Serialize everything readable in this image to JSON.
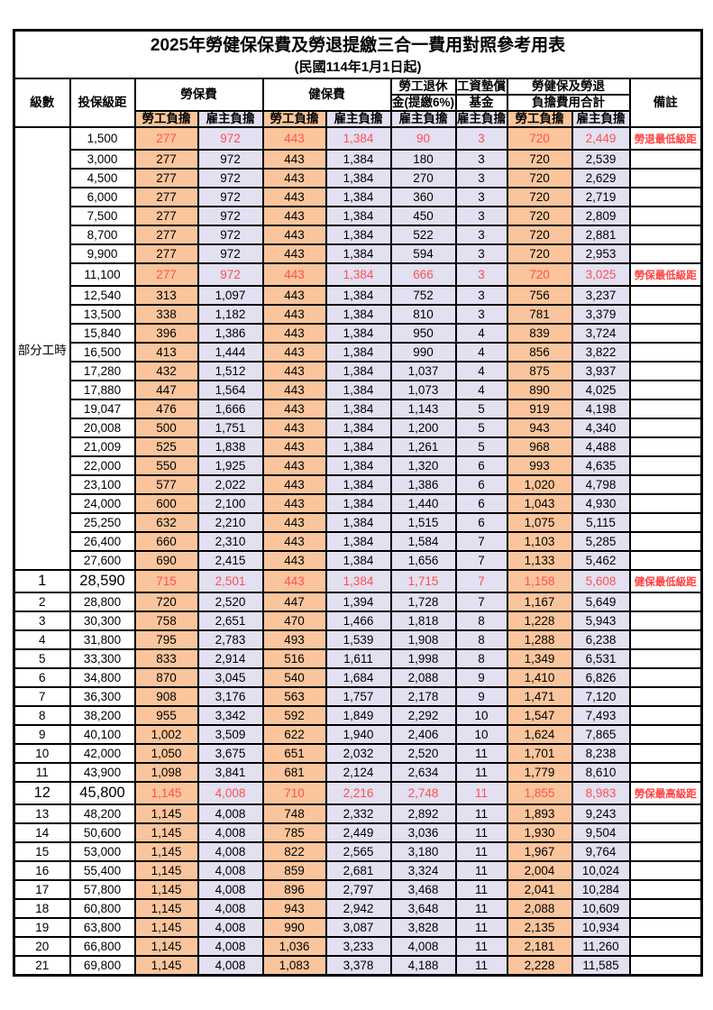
{
  "title": {
    "line1": "2025年勞健保保費及勞退提繳三合一費用對照參考用表",
    "line2": "(民國114年1月1日起)"
  },
  "header": {
    "level": "級數",
    "bracket": "投保級距",
    "labor_fee": "勞保費",
    "health_fee": "健保費",
    "pension_line1": "勞工退休",
    "pension_line2": "金(提繳6%)",
    "wage_fund_line1": "工資墊償",
    "wage_fund_line2": "基金",
    "total_line1": "勞健保及勞退",
    "total_line2": "負擔費用合計",
    "remark": "備註",
    "employee": "勞工負擔",
    "employer": "雇主負擔"
  },
  "colors": {
    "employee_bg": "#FAC59C",
    "employer_bg": "#E2E0F1",
    "highlight_value_red": "#FF5050",
    "remark_red": "#FF4040",
    "border": "#000000"
  },
  "table": {
    "partial_time_label": "部分工時",
    "rows": [
      {
        "level": null,
        "bracket": "1,500",
        "values": [
          "277",
          "972",
          "443",
          "1,384",
          "90",
          "3",
          "720",
          "2,449"
        ],
        "remark": "勞退最低級距",
        "highlight": true
      },
      {
        "level": null,
        "bracket": "3,000",
        "values": [
          "277",
          "972",
          "443",
          "1,384",
          "180",
          "3",
          "720",
          "2,539"
        ]
      },
      {
        "level": null,
        "bracket": "4,500",
        "values": [
          "277",
          "972",
          "443",
          "1,384",
          "270",
          "3",
          "720",
          "2,629"
        ]
      },
      {
        "level": null,
        "bracket": "6,000",
        "values": [
          "277",
          "972",
          "443",
          "1,384",
          "360",
          "3",
          "720",
          "2,719"
        ]
      },
      {
        "level": null,
        "bracket": "7,500",
        "values": [
          "277",
          "972",
          "443",
          "1,384",
          "450",
          "3",
          "720",
          "2,809"
        ]
      },
      {
        "level": null,
        "bracket": "8,700",
        "values": [
          "277",
          "972",
          "443",
          "1,384",
          "522",
          "3",
          "720",
          "2,881"
        ]
      },
      {
        "level": null,
        "bracket": "9,900",
        "values": [
          "277",
          "972",
          "443",
          "1,384",
          "594",
          "3",
          "720",
          "2,953"
        ]
      },
      {
        "level": null,
        "bracket": "11,100",
        "values": [
          "277",
          "972",
          "443",
          "1,384",
          "666",
          "3",
          "720",
          "3,025"
        ],
        "remark": "勞保最低級距",
        "highlight": true
      },
      {
        "level": null,
        "bracket": "12,540",
        "values": [
          "313",
          "1,097",
          "443",
          "1,384",
          "752",
          "3",
          "756",
          "3,237"
        ]
      },
      {
        "level": null,
        "bracket": "13,500",
        "values": [
          "338",
          "1,182",
          "443",
          "1,384",
          "810",
          "3",
          "781",
          "3,379"
        ]
      },
      {
        "level": null,
        "bracket": "15,840",
        "values": [
          "396",
          "1,386",
          "443",
          "1,384",
          "950",
          "4",
          "839",
          "3,724"
        ]
      },
      {
        "level": null,
        "bracket": "16,500",
        "values": [
          "413",
          "1,444",
          "443",
          "1,384",
          "990",
          "4",
          "856",
          "3,822"
        ]
      },
      {
        "level": null,
        "bracket": "17,280",
        "values": [
          "432",
          "1,512",
          "443",
          "1,384",
          "1,037",
          "4",
          "875",
          "3,937"
        ]
      },
      {
        "level": null,
        "bracket": "17,880",
        "values": [
          "447",
          "1,564",
          "443",
          "1,384",
          "1,073",
          "4",
          "890",
          "4,025"
        ]
      },
      {
        "level": null,
        "bracket": "19,047",
        "values": [
          "476",
          "1,666",
          "443",
          "1,384",
          "1,143",
          "5",
          "919",
          "4,198"
        ]
      },
      {
        "level": null,
        "bracket": "20,008",
        "values": [
          "500",
          "1,751",
          "443",
          "1,384",
          "1,200",
          "5",
          "943",
          "4,340"
        ]
      },
      {
        "level": null,
        "bracket": "21,009",
        "values": [
          "525",
          "1,838",
          "443",
          "1,384",
          "1,261",
          "5",
          "968",
          "4,488"
        ]
      },
      {
        "level": null,
        "bracket": "22,000",
        "values": [
          "550",
          "1,925",
          "443",
          "1,384",
          "1,320",
          "6",
          "993",
          "4,635"
        ]
      },
      {
        "level": null,
        "bracket": "23,100",
        "values": [
          "577",
          "2,022",
          "443",
          "1,384",
          "1,386",
          "6",
          "1,020",
          "4,798"
        ]
      },
      {
        "level": null,
        "bracket": "24,000",
        "values": [
          "600",
          "2,100",
          "443",
          "1,384",
          "1,440",
          "6",
          "1,043",
          "4,930"
        ]
      },
      {
        "level": null,
        "bracket": "25,250",
        "values": [
          "632",
          "2,210",
          "443",
          "1,384",
          "1,515",
          "6",
          "1,075",
          "5,115"
        ]
      },
      {
        "level": null,
        "bracket": "26,400",
        "values": [
          "660",
          "2,310",
          "443",
          "1,384",
          "1,584",
          "7",
          "1,103",
          "5,285"
        ]
      },
      {
        "level": null,
        "bracket": "27,600",
        "values": [
          "690",
          "2,415",
          "443",
          "1,384",
          "1,656",
          "7",
          "1,133",
          "5,462"
        ]
      },
      {
        "level": "1",
        "bracket": "28,590",
        "values": [
          "715",
          "2,501",
          "443",
          "1,384",
          "1,715",
          "7",
          "1,158",
          "5,608"
        ],
        "remark": "健保最低級距",
        "highlight": true,
        "big": true
      },
      {
        "level": "2",
        "bracket": "28,800",
        "values": [
          "720",
          "2,520",
          "447",
          "1,394",
          "1,728",
          "7",
          "1,167",
          "5,649"
        ]
      },
      {
        "level": "3",
        "bracket": "30,300",
        "values": [
          "758",
          "2,651",
          "470",
          "1,466",
          "1,818",
          "8",
          "1,228",
          "5,943"
        ]
      },
      {
        "level": "4",
        "bracket": "31,800",
        "values": [
          "795",
          "2,783",
          "493",
          "1,539",
          "1,908",
          "8",
          "1,288",
          "6,238"
        ]
      },
      {
        "level": "5",
        "bracket": "33,300",
        "values": [
          "833",
          "2,914",
          "516",
          "1,611",
          "1,998",
          "8",
          "1,349",
          "6,531"
        ]
      },
      {
        "level": "6",
        "bracket": "34,800",
        "values": [
          "870",
          "3,045",
          "540",
          "1,684",
          "2,088",
          "9",
          "1,410",
          "6,826"
        ]
      },
      {
        "level": "7",
        "bracket": "36,300",
        "values": [
          "908",
          "3,176",
          "563",
          "1,757",
          "2,178",
          "9",
          "1,471",
          "7,120"
        ]
      },
      {
        "level": "8",
        "bracket": "38,200",
        "values": [
          "955",
          "3,342",
          "592",
          "1,849",
          "2,292",
          "10",
          "1,547",
          "7,493"
        ]
      },
      {
        "level": "9",
        "bracket": "40,100",
        "values": [
          "1,002",
          "3,509",
          "622",
          "1,940",
          "2,406",
          "10",
          "1,624",
          "7,865"
        ]
      },
      {
        "level": "10",
        "bracket": "42,000",
        "values": [
          "1,050",
          "3,675",
          "651",
          "2,032",
          "2,520",
          "11",
          "1,701",
          "8,238"
        ]
      },
      {
        "level": "11",
        "bracket": "43,900",
        "values": [
          "1,098",
          "3,841",
          "681",
          "2,124",
          "2,634",
          "11",
          "1,779",
          "8,610"
        ]
      },
      {
        "level": "12",
        "bracket": "45,800",
        "values": [
          "1,145",
          "4,008",
          "710",
          "2,216",
          "2,748",
          "11",
          "1,855",
          "8,983"
        ],
        "remark": "勞保最高級距",
        "highlight": true,
        "big": true
      },
      {
        "level": "13",
        "bracket": "48,200",
        "values": [
          "1,145",
          "4,008",
          "748",
          "2,332",
          "2,892",
          "11",
          "1,893",
          "9,243"
        ]
      },
      {
        "level": "14",
        "bracket": "50,600",
        "values": [
          "1,145",
          "4,008",
          "785",
          "2,449",
          "3,036",
          "11",
          "1,930",
          "9,504"
        ]
      },
      {
        "level": "15",
        "bracket": "53,000",
        "values": [
          "1,145",
          "4,008",
          "822",
          "2,565",
          "3,180",
          "11",
          "1,967",
          "9,764"
        ]
      },
      {
        "level": "16",
        "bracket": "55,400",
        "values": [
          "1,145",
          "4,008",
          "859",
          "2,681",
          "3,324",
          "11",
          "2,004",
          "10,024"
        ]
      },
      {
        "level": "17",
        "bracket": "57,800",
        "values": [
          "1,145",
          "4,008",
          "896",
          "2,797",
          "3,468",
          "11",
          "2,041",
          "10,284"
        ]
      },
      {
        "level": "18",
        "bracket": "60,800",
        "values": [
          "1,145",
          "4,008",
          "943",
          "2,942",
          "3,648",
          "11",
          "2,088",
          "10,609"
        ]
      },
      {
        "level": "19",
        "bracket": "63,800",
        "values": [
          "1,145",
          "4,008",
          "990",
          "3,087",
          "3,828",
          "11",
          "2,135",
          "10,934"
        ]
      },
      {
        "level": "20",
        "bracket": "66,800",
        "values": [
          "1,145",
          "4,008",
          "1,036",
          "3,233",
          "4,008",
          "11",
          "2,181",
          "11,260"
        ]
      },
      {
        "level": "21",
        "bracket": "69,800",
        "values": [
          "1,145",
          "4,008",
          "1,083",
          "3,378",
          "4,188",
          "11",
          "2,228",
          "11,585"
        ]
      }
    ]
  }
}
